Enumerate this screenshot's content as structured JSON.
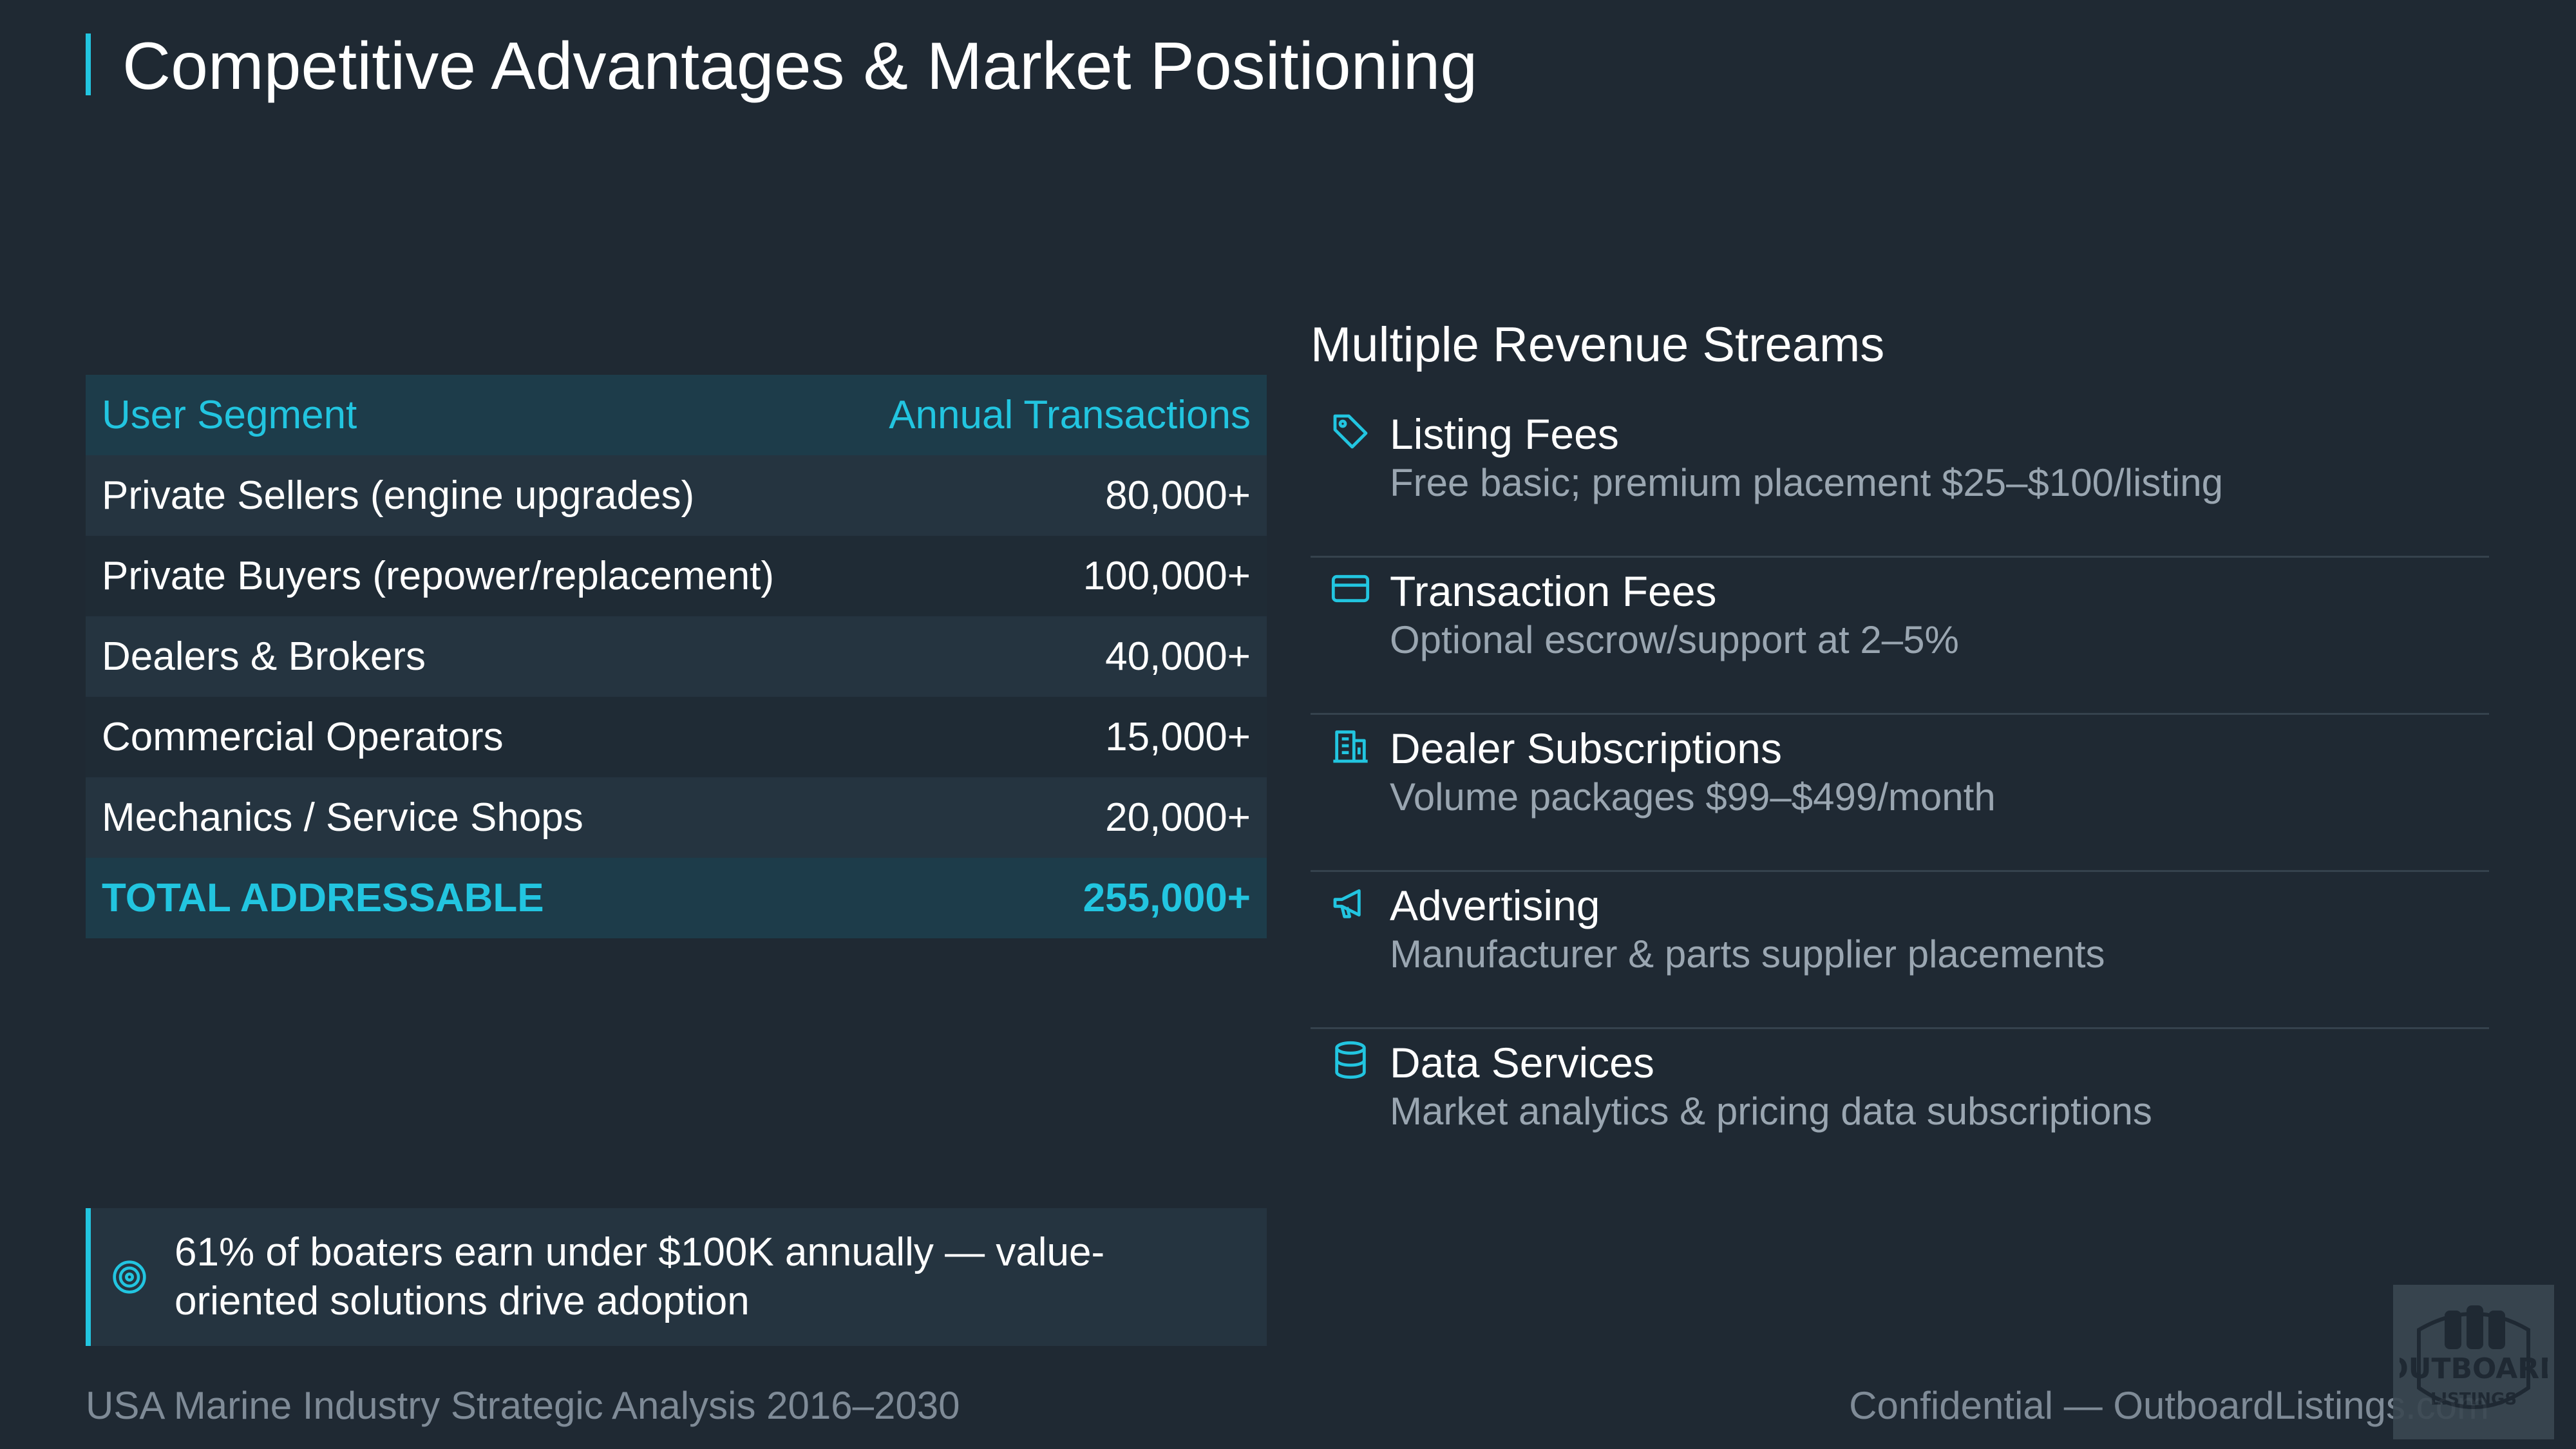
{
  "slide": {
    "title": "Competitive Advantages & Market Positioning"
  },
  "table": {
    "headers": [
      "User Segment",
      "Annual Transactions"
    ],
    "rows": [
      {
        "segment": "Private Sellers (engine upgrades)",
        "transactions": "80,000+"
      },
      {
        "segment": "Private Buyers (repower/replacement)",
        "transactions": "100,000+"
      },
      {
        "segment": "Dealers & Brokers",
        "transactions": "40,000+"
      },
      {
        "segment": "Commercial Operators",
        "transactions": "15,000+"
      },
      {
        "segment": "Mechanics / Service Shops",
        "transactions": "20,000+"
      }
    ],
    "total": {
      "segment": "TOTAL ADDRESSABLE",
      "transactions": "255,000+"
    }
  },
  "callout": {
    "icon": "target-icon",
    "text": "61% of boaters earn under $100K annually — value-oriented solutions drive adoption"
  },
  "revenue": {
    "title": "Multiple Revenue Streams",
    "streams": [
      {
        "icon": "tag-icon",
        "name": "Listing Fees",
        "desc": "Free basic; premium placement $25–$100/listing"
      },
      {
        "icon": "credit-card-icon",
        "name": "Transaction Fees",
        "desc": "Optional escrow/support at 2–5%"
      },
      {
        "icon": "building-icon",
        "name": "Dealer Subscriptions",
        "desc": "Volume packages $99–$499/month"
      },
      {
        "icon": "megaphone-icon",
        "name": "Advertising",
        "desc": "Manufacturer & parts supplier placements"
      },
      {
        "icon": "database-icon",
        "name": "Data Services",
        "desc": "Market analytics & pricing data subscriptions"
      }
    ]
  },
  "footer": {
    "left": "USA Marine Industry Strategic Analysis 2016–2030",
    "right": "Confidential — OutboardListings.com"
  },
  "logo": {
    "line1": "OUTBOARD",
    "line2": "LISTINGS"
  },
  "colors": {
    "background": "#1f2933",
    "accent": "#22c5e0",
    "muted": "#9aa6b1"
  }
}
